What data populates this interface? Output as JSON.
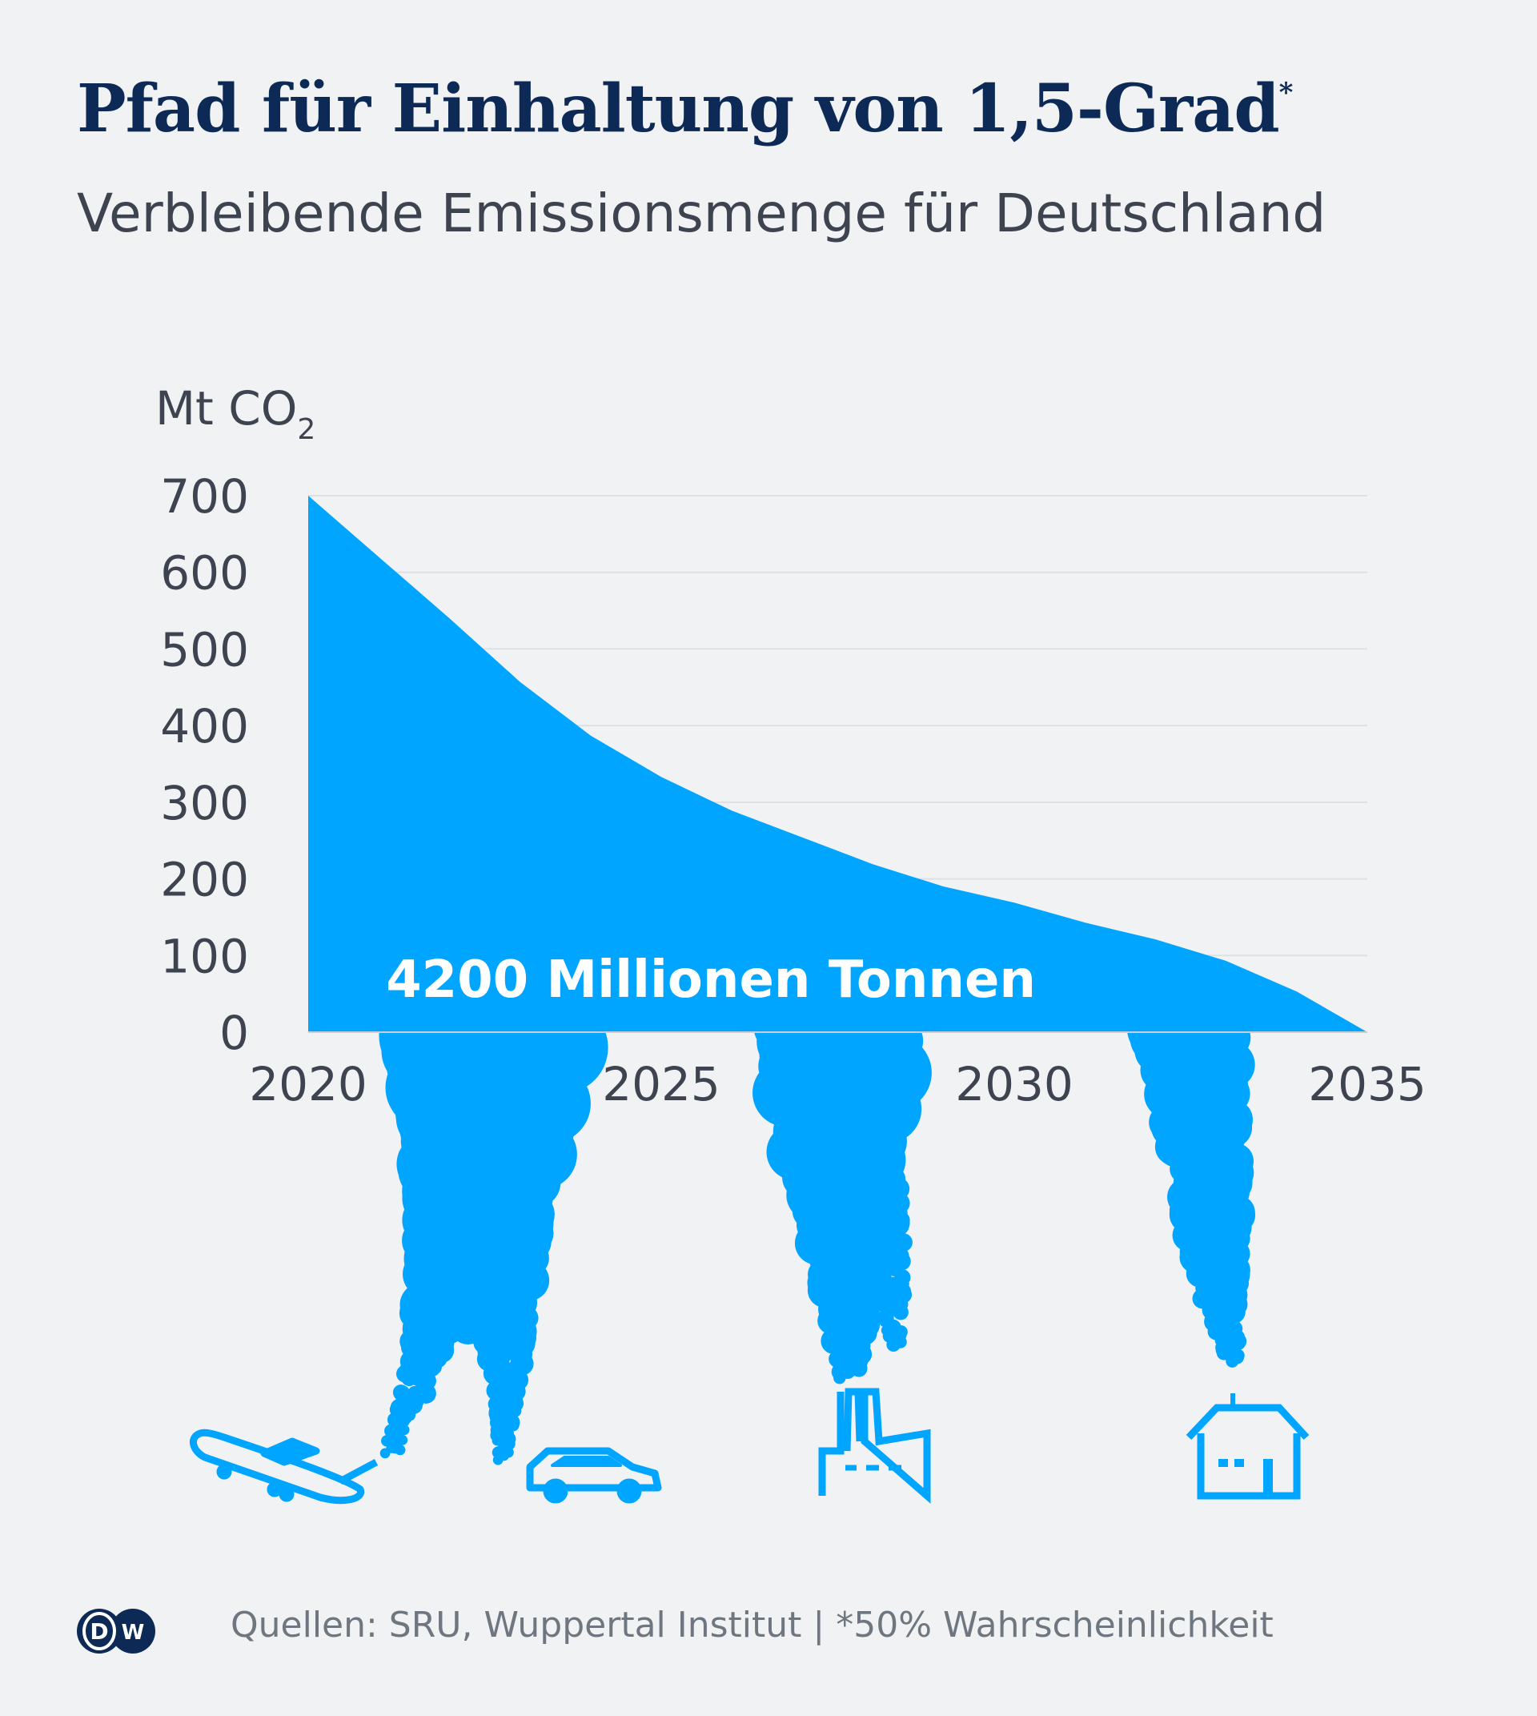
{
  "header": {
    "title": "Pfad für Einhaltung von 1,5-Grad",
    "title_mark": "*",
    "subtitle": "Verbleibende Emissionsmenge für Deutschland"
  },
  "chart_data": {
    "type": "area",
    "title": "Pfad für Einhaltung von 1,5-Grad*",
    "subtitle": "Verbleibende Emissionsmenge für Deutschland",
    "ylabel": "Mt CO",
    "ylabel_sub": "2",
    "xlabel": "",
    "x": [
      2020,
      2021,
      2022,
      2023,
      2024,
      2025,
      2026,
      2027,
      2028,
      2029,
      2030,
      2031,
      2032,
      2033,
      2034,
      2035
    ],
    "values": [
      700,
      620,
      540,
      457,
      387,
      333,
      289,
      254,
      219,
      190,
      169,
      143,
      121,
      93,
      53,
      0
    ],
    "xlim": [
      2020,
      2035
    ],
    "ylim": [
      0,
      700
    ],
    "yticks": [
      "0",
      "100",
      "200",
      "300",
      "400",
      "500",
      "600",
      "700"
    ],
    "xticks": [
      "2020",
      "2025",
      "2030",
      "2035"
    ],
    "grid": true,
    "annotation": "4200 Millionen Tonnen",
    "fill_color": "#00a5ff"
  },
  "footer": {
    "source": "Quellen: SRU, Wuppertal Institut | *50% Wahrscheinlichkeit",
    "logo_text": "DW"
  },
  "colors": {
    "background": "#f1f2f4",
    "title": "#0c2a55",
    "accent": "#00a5ff"
  },
  "icons": [
    "airplane-icon",
    "car-icon",
    "factory-icon",
    "house-icon"
  ]
}
